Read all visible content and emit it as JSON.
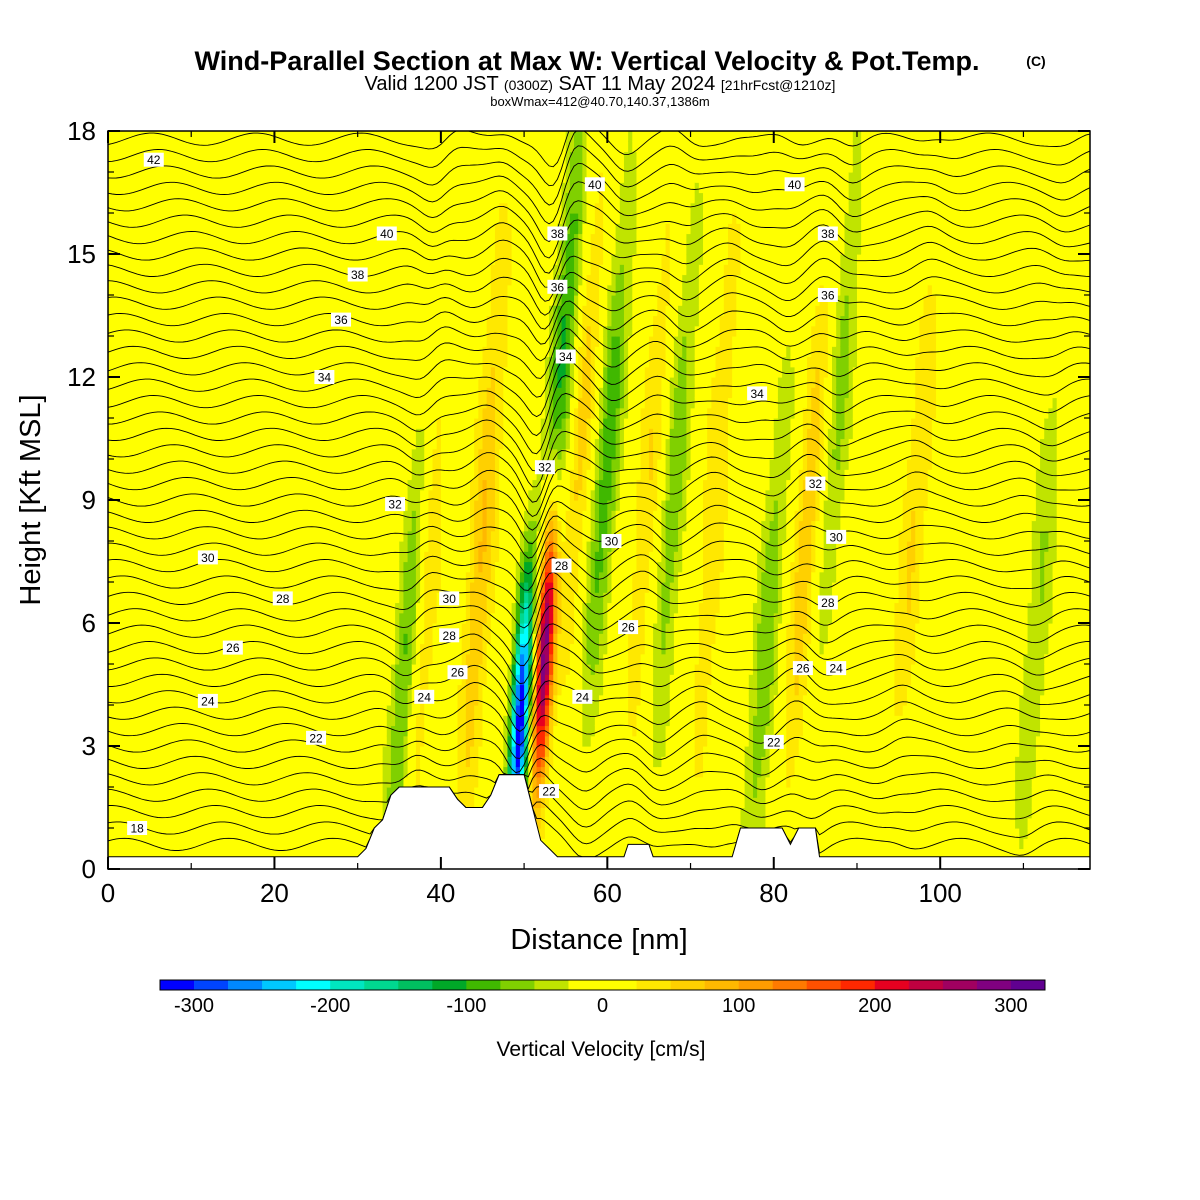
{
  "titles": {
    "main": "Wind-Parallel Section at Max W: Vertical Velocity & Pot.Temp.",
    "copyright": "(C)",
    "valid_prefix": "Valid 1200 JST",
    "valid_z": "(0300Z)",
    "valid_date": "SAT 11 May 2024",
    "forecast": "[21hrFcst@1210z]",
    "boxwmax": "boxWmax=412@40.70,140.37,1386m"
  },
  "chart_data": {
    "type": "heatmap",
    "xlabel": "Distance [nm]",
    "ylabel": "Height [Kft MSL]",
    "xlim": [
      0,
      118
    ],
    "ylim": [
      0,
      18
    ],
    "x_ticks": [
      0,
      20,
      40,
      60,
      80,
      100
    ],
    "y_ticks": [
      0,
      3,
      6,
      9,
      12,
      15,
      18
    ],
    "colorbar": {
      "title": "Vertical Velocity [cm/s]",
      "range": [
        -325,
        325
      ],
      "step": 25,
      "tick_values": [
        -300,
        -200,
        -100,
        0,
        100,
        200,
        300
      ],
      "tick_labels": [
        "-300",
        "-200",
        "-100",
        "0",
        "100",
        "200",
        "300"
      ],
      "colors": [
        "#0000ff",
        "#0044ff",
        "#0088ff",
        "#00c8ff",
        "#00ffff",
        "#00e6c0",
        "#00d890",
        "#00c060",
        "#00a828",
        "#40b800",
        "#80d000",
        "#c0e400",
        "#ffff00",
        "#ffff00",
        "#ffe800",
        "#ffd000",
        "#ffb800",
        "#ff9c00",
        "#ff7a00",
        "#ff5000",
        "#ff2800",
        "#e60020",
        "#c00040",
        "#a00060",
        "#800080",
        "#600090"
      ]
    },
    "updrafts": [
      {
        "x": 52.5,
        "z_peak": 5.5,
        "peak": 330
      },
      {
        "x": 38.0,
        "z_peak": 7.0,
        "peak": 70
      },
      {
        "x": 45.0,
        "z_peak": 8.0,
        "peak": 80
      },
      {
        "x": 57.0,
        "z_peak": 11.0,
        "peak": 60
      },
      {
        "x": 65.0,
        "z_peak": 9.0,
        "peak": 50
      },
      {
        "x": 73.0,
        "z_peak": 9.0,
        "peak": 50
      },
      {
        "x": 84.0,
        "z_peak": 8.0,
        "peak": 70
      },
      {
        "x": 97.0,
        "z_peak": 9.0,
        "peak": 50
      }
    ],
    "downdrafts": [
      {
        "x": 49.5,
        "z_peak": 3.5,
        "peak": -320
      },
      {
        "x": 36.0,
        "z_peak": 5.0,
        "peak": -100
      },
      {
        "x": 54.5,
        "z_peak": 12.0,
        "peak": -110
      },
      {
        "x": 60.0,
        "z_peak": 10.0,
        "peak": -90
      },
      {
        "x": 68.0,
        "z_peak": 9.0,
        "peak": -70
      },
      {
        "x": 79.0,
        "z_peak": 5.0,
        "peak": -70
      },
      {
        "x": 88.0,
        "z_peak": 12.0,
        "peak": -60
      },
      {
        "x": 112.0,
        "z_peak": 7.0,
        "peak": -50
      }
    ],
    "terrain": [
      [
        0,
        0.3
      ],
      [
        30,
        0.3
      ],
      [
        31,
        0.5
      ],
      [
        32,
        1.0
      ],
      [
        33,
        1.2
      ],
      [
        34,
        1.8
      ],
      [
        35,
        2.0
      ],
      [
        41,
        2.0
      ],
      [
        42,
        1.7
      ],
      [
        43,
        1.5
      ],
      [
        45,
        1.5
      ],
      [
        46,
        1.8
      ],
      [
        47,
        2.3
      ],
      [
        50,
        2.3
      ],
      [
        51,
        1.5
      ],
      [
        52,
        0.7
      ],
      [
        53,
        0.5
      ],
      [
        54,
        0.3
      ],
      [
        62,
        0.3
      ],
      [
        62.5,
        0.6
      ],
      [
        65,
        0.6
      ],
      [
        65.5,
        0.3
      ],
      [
        75,
        0.3
      ],
      [
        76,
        1.0
      ],
      [
        81,
        1.0
      ],
      [
        82,
        0.6
      ],
      [
        83,
        1.0
      ],
      [
        85,
        1.0
      ],
      [
        85.5,
        0.3
      ],
      [
        118,
        0.3
      ]
    ],
    "theta_contours": [
      18,
      20,
      22,
      24,
      26,
      28,
      30,
      32,
      34,
      36,
      38,
      40,
      42
    ],
    "contour_labels": [
      {
        "text": "42",
        "x": 5.5,
        "y": 17.3
      },
      {
        "text": "40",
        "x": 33.5,
        "y": 15.5
      },
      {
        "text": "40",
        "x": 58.5,
        "y": 16.7
      },
      {
        "text": "40",
        "x": 82.5,
        "y": 16.7
      },
      {
        "text": "38",
        "x": 30.0,
        "y": 14.5
      },
      {
        "text": "38",
        "x": 54.0,
        "y": 15.5
      },
      {
        "text": "38",
        "x": 86.5,
        "y": 15.5
      },
      {
        "text": "36",
        "x": 28.0,
        "y": 13.4
      },
      {
        "text": "36",
        "x": 54.0,
        "y": 14.2
      },
      {
        "text": "36",
        "x": 86.5,
        "y": 14.0
      },
      {
        "text": "34",
        "x": 26.0,
        "y": 12.0
      },
      {
        "text": "34",
        "x": 55.0,
        "y": 12.5
      },
      {
        "text": "34",
        "x": 78.0,
        "y": 11.6
      },
      {
        "text": "32",
        "x": 34.5,
        "y": 8.9
      },
      {
        "text": "32",
        "x": 52.5,
        "y": 9.8
      },
      {
        "text": "32",
        "x": 85.0,
        "y": 9.4
      },
      {
        "text": "30",
        "x": 12.0,
        "y": 7.6
      },
      {
        "text": "30",
        "x": 41.0,
        "y": 6.6
      },
      {
        "text": "30",
        "x": 60.5,
        "y": 8.0
      },
      {
        "text": "30",
        "x": 87.5,
        "y": 8.1
      },
      {
        "text": "28",
        "x": 21.0,
        "y": 6.6
      },
      {
        "text": "28",
        "x": 41.0,
        "y": 5.7
      },
      {
        "text": "28",
        "x": 54.5,
        "y": 7.4
      },
      {
        "text": "28",
        "x": 86.5,
        "y": 6.5
      },
      {
        "text": "26",
        "x": 15.0,
        "y": 5.4
      },
      {
        "text": "26",
        "x": 42.0,
        "y": 4.8
      },
      {
        "text": "26",
        "x": 62.5,
        "y": 5.9
      },
      {
        "text": "26",
        "x": 83.5,
        "y": 4.9
      },
      {
        "text": "24",
        "x": 12.0,
        "y": 4.1
      },
      {
        "text": "24",
        "x": 38.0,
        "y": 4.2
      },
      {
        "text": "24",
        "x": 57.0,
        "y": 4.2
      },
      {
        "text": "24",
        "x": 87.5,
        "y": 4.9
      },
      {
        "text": "22",
        "x": 25.0,
        "y": 3.2
      },
      {
        "text": "22",
        "x": 53.0,
        "y": 1.9
      },
      {
        "text": "22",
        "x": 80.0,
        "y": 3.1
      },
      {
        "text": "18",
        "x": 3.5,
        "y": 1.0
      }
    ]
  }
}
